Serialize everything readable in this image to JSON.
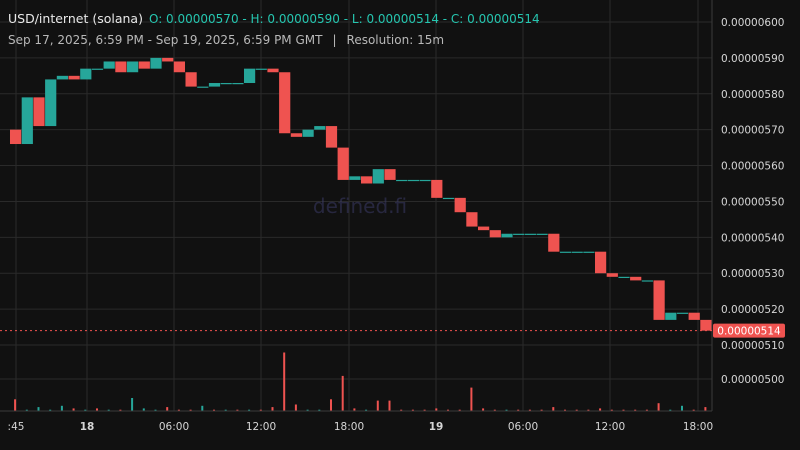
{
  "header": {
    "pair": "USD/internet (solana)",
    "ohlc_text": "O: 0.00000570 - H: 0.00000590 - L: 0.00000514 - C: 0.00000514",
    "range": "Sep 17, 2025, 6:59 PM - Sep 19, 2025, 6:59 PM GMT",
    "separator": "|",
    "resolution": "Resolution: 15m"
  },
  "watermark": "defined.fi",
  "colors": {
    "background": "#111111",
    "up": "#26a69a",
    "down": "#ef5350",
    "grid": "#2a2a2a",
    "text": "#d6d6d6",
    "price_line": "#ef5350"
  },
  "chart_data": {
    "type": "candlestick",
    "interval": "15m",
    "open": 5.7e-06,
    "high": 5.9e-06,
    "low": 5.14e-06,
    "close": 5.14e-06,
    "last_price_label": "0.00000514",
    "price_ticks": [
      "0.00000600",
      "0.00000590",
      "0.00000580",
      "0.00000570",
      "0.00000560",
      "0.00000550",
      "0.00000540",
      "0.00000530",
      "0.00000520",
      "0.00000510"
    ],
    "volume_ticks": [
      "0.00000500"
    ],
    "time_ticks": [
      {
        "label": ":45",
        "bold": false
      },
      {
        "label": "18",
        "bold": true
      },
      {
        "label": "06:00",
        "bold": false
      },
      {
        "label": "12:00",
        "bold": false
      },
      {
        "label": "18:00",
        "bold": false
      },
      {
        "label": "19",
        "bold": true
      },
      {
        "label": "06:00",
        "bold": false
      },
      {
        "label": "12:00",
        "bold": false
      },
      {
        "label": "18:00",
        "bold": false
      }
    ],
    "candles": [
      {
        "o": 5.7,
        "c": 5.66
      },
      {
        "o": 5.66,
        "c": 5.79
      },
      {
        "o": 5.79,
        "c": 5.71
      },
      {
        "o": 5.71,
        "c": 5.84
      },
      {
        "o": 5.84,
        "c": 5.85
      },
      {
        "o": 5.85,
        "c": 5.84
      },
      {
        "o": 5.84,
        "c": 5.87
      },
      {
        "o": 5.87,
        "c": 5.87
      },
      {
        "o": 5.87,
        "c": 5.89
      },
      {
        "o": 5.89,
        "c": 5.86
      },
      {
        "o": 5.86,
        "c": 5.89
      },
      {
        "o": 5.89,
        "c": 5.87
      },
      {
        "o": 5.87,
        "c": 5.9
      },
      {
        "o": 5.9,
        "c": 5.89
      },
      {
        "o": 5.89,
        "c": 5.86
      },
      {
        "o": 5.86,
        "c": 5.82
      },
      {
        "o": 5.82,
        "c": 5.82
      },
      {
        "o": 5.82,
        "c": 5.83
      },
      {
        "o": 5.83,
        "c": 5.83
      },
      {
        "o": 5.83,
        "c": 5.83
      },
      {
        "o": 5.83,
        "c": 5.87
      },
      {
        "o": 5.87,
        "c": 5.87
      },
      {
        "o": 5.87,
        "c": 5.86
      },
      {
        "o": 5.86,
        "c": 5.69
      },
      {
        "o": 5.69,
        "c": 5.68
      },
      {
        "o": 5.68,
        "c": 5.7
      },
      {
        "o": 5.7,
        "c": 5.71
      },
      {
        "o": 5.71,
        "c": 5.65
      },
      {
        "o": 5.65,
        "c": 5.56
      },
      {
        "o": 5.56,
        "c": 5.57
      },
      {
        "o": 5.57,
        "c": 5.55
      },
      {
        "o": 5.55,
        "c": 5.59
      },
      {
        "o": 5.59,
        "c": 5.56
      },
      {
        "o": 5.56,
        "c": 5.56
      },
      {
        "o": 5.56,
        "c": 5.56
      },
      {
        "o": 5.56,
        "c": 5.56
      },
      {
        "o": 5.56,
        "c": 5.51
      },
      {
        "o": 5.51,
        "c": 5.51
      },
      {
        "o": 5.51,
        "c": 5.47
      },
      {
        "o": 5.47,
        "c": 5.43
      },
      {
        "o": 5.43,
        "c": 5.42
      },
      {
        "o": 5.42,
        "c": 5.4
      },
      {
        "o": 5.4,
        "c": 5.41
      },
      {
        "o": 5.41,
        "c": 5.41
      },
      {
        "o": 5.41,
        "c": 5.41
      },
      {
        "o": 5.41,
        "c": 5.41
      },
      {
        "o": 5.41,
        "c": 5.36
      },
      {
        "o": 5.36,
        "c": 5.36
      },
      {
        "o": 5.36,
        "c": 5.36
      },
      {
        "o": 5.36,
        "c": 5.36
      },
      {
        "o": 5.36,
        "c": 5.3
      },
      {
        "o": 5.3,
        "c": 5.29
      },
      {
        "o": 5.29,
        "c": 5.29
      },
      {
        "o": 5.29,
        "c": 5.28
      },
      {
        "o": 5.28,
        "c": 5.28
      },
      {
        "o": 5.28,
        "c": 5.17
      },
      {
        "o": 5.17,
        "c": 5.19
      },
      {
        "o": 5.19,
        "c": 5.19
      },
      {
        "o": 5.19,
        "c": 5.17
      },
      {
        "o": 5.17,
        "c": 5.14
      }
    ],
    "volumes": [
      {
        "v": 0.9,
        "up": false
      },
      {
        "v": 0.1,
        "up": true
      },
      {
        "v": 0.3,
        "up": true
      },
      {
        "v": 0.1,
        "up": true
      },
      {
        "v": 0.4,
        "up": true
      },
      {
        "v": 0.2,
        "up": false
      },
      {
        "v": 0.1,
        "up": true
      },
      {
        "v": 0.2,
        "up": false
      },
      {
        "v": 0.1,
        "up": true
      },
      {
        "v": 0.1,
        "up": false
      },
      {
        "v": 1.0,
        "up": true
      },
      {
        "v": 0.2,
        "up": true
      },
      {
        "v": 0.1,
        "up": true
      },
      {
        "v": 0.3,
        "up": false
      },
      {
        "v": 0.1,
        "up": false
      },
      {
        "v": 0.1,
        "up": false
      },
      {
        "v": 0.4,
        "up": true
      },
      {
        "v": 0.1,
        "up": false
      },
      {
        "v": 0.1,
        "up": true
      },
      {
        "v": 0.1,
        "up": false
      },
      {
        "v": 0.1,
        "up": true
      },
      {
        "v": 0.1,
        "up": false
      },
      {
        "v": 0.3,
        "up": false
      },
      {
        "v": 4.5,
        "up": false
      },
      {
        "v": 0.5,
        "up": false
      },
      {
        "v": 0.1,
        "up": true
      },
      {
        "v": 0.1,
        "up": true
      },
      {
        "v": 0.9,
        "up": false
      },
      {
        "v": 2.7,
        "up": false
      },
      {
        "v": 0.2,
        "up": false
      },
      {
        "v": 0.1,
        "up": true
      },
      {
        "v": 0.8,
        "up": false
      },
      {
        "v": 0.8,
        "up": false
      },
      {
        "v": 0.1,
        "up": false
      },
      {
        "v": 0.1,
        "up": false
      },
      {
        "v": 0.1,
        "up": false
      },
      {
        "v": 0.2,
        "up": false
      },
      {
        "v": 0.1,
        "up": false
      },
      {
        "v": 0.1,
        "up": false
      },
      {
        "v": 1.8,
        "up": false
      },
      {
        "v": 0.2,
        "up": false
      },
      {
        "v": 0.1,
        "up": false
      },
      {
        "v": 0.1,
        "up": true
      },
      {
        "v": 0.1,
        "up": false
      },
      {
        "v": 0.1,
        "up": false
      },
      {
        "v": 0.1,
        "up": false
      },
      {
        "v": 0.3,
        "up": false
      },
      {
        "v": 0.1,
        "up": false
      },
      {
        "v": 0.1,
        "up": false
      },
      {
        "v": 0.1,
        "up": false
      },
      {
        "v": 0.2,
        "up": false
      },
      {
        "v": 0.1,
        "up": false
      },
      {
        "v": 0.1,
        "up": false
      },
      {
        "v": 0.1,
        "up": false
      },
      {
        "v": 0.1,
        "up": false
      },
      {
        "v": 0.6,
        "up": false
      },
      {
        "v": 0.1,
        "up": true
      },
      {
        "v": 0.4,
        "up": true
      },
      {
        "v": 0.1,
        "up": false
      },
      {
        "v": 0.3,
        "up": false
      }
    ]
  }
}
